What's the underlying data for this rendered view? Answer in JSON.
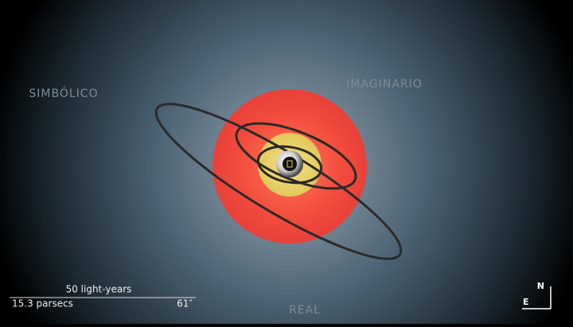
{
  "labels": {
    "symbolic": "SIMBÓLICO",
    "imaginary": "IMAGINARIO",
    "real": "REAL"
  },
  "scale_bar": {
    "distance": "50 light-years",
    "parsecs": "15.3 parsecs",
    "angle": "61″"
  },
  "compass": {
    "north": "N",
    "east": "E"
  }
}
